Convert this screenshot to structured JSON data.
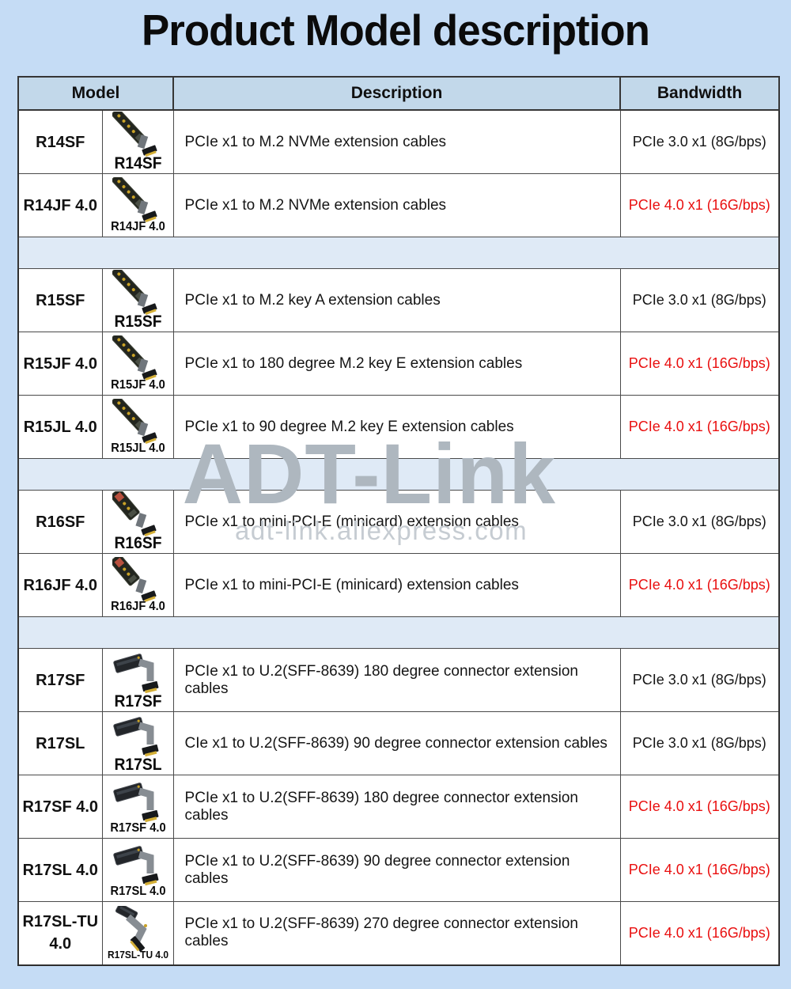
{
  "page": {
    "title": "Product Model description"
  },
  "watermark": {
    "brand": "ADT-Link",
    "url": "adt-link.aliexpress.com"
  },
  "colors": {
    "background": "#c5dcf5",
    "header_bg": "#c2d8ea",
    "spacer_bg": "#dfeaf6",
    "cell_bg": "#ffffff",
    "bandwidth_highlight": "#e90f0f",
    "border": "#363636"
  },
  "table": {
    "headers": [
      "Model",
      "Description",
      "Bandwidth"
    ],
    "rows": [
      {
        "model": "R14SF",
        "caption": "R14SF",
        "icon": "m2-stick-cable-icon",
        "description": "PCIe x1 to M.2 NVMe extension cables",
        "bandwidth": "PCIe 3.0 x1 (8G/bps)",
        "highlight": false
      },
      {
        "model": "R14JF 4.0",
        "caption": "R14JF 4.0",
        "icon": "m2-stick-cable-icon",
        "description": "PCIe x1 to M.2 NVMe extension cables",
        "bandwidth": "PCIe 4.0 x1 (16G/bps)",
        "highlight": true
      },
      {
        "type": "spacer"
      },
      {
        "model": "R15SF",
        "caption": "R15SF",
        "icon": "m2-stick-cable-icon",
        "description": "PCIe x1 to M.2 key A extension cables",
        "bandwidth": "PCIe 3.0 x1 (8G/bps)",
        "highlight": false
      },
      {
        "model": "R15JF 4.0",
        "caption": "R15JF 4.0",
        "icon": "m2-stick-cable-icon",
        "description": "PCIe x1 to 180 degree M.2 key E extension cables",
        "bandwidth": "PCIe 4.0 x1 (16G/bps)",
        "highlight": true
      },
      {
        "model": "R15JL 4.0",
        "caption": "R15JL 4.0",
        "icon": "m2-stick-cable-icon",
        "description": "PCIe x1 to 90 degree M.2 key E extension cables",
        "bandwidth": "PCIe 4.0 x1 (16G/bps)",
        "highlight": true
      },
      {
        "type": "spacer"
      },
      {
        "model": "R16SF",
        "caption": "R16SF",
        "icon": "minipcie-stick-cable-icon",
        "description": "PCIe x1 to mini-PCI-E (minicard) extension cables",
        "bandwidth": "PCIe 3.0 x1 (8G/bps)",
        "highlight": false
      },
      {
        "model": "R16JF 4.0",
        "caption": "R16JF 4.0",
        "icon": "minipcie-stick-cable-icon",
        "description": "PCIe x1 to mini-PCI-E (minicard) extension cables",
        "bandwidth": "PCIe 4.0 x1 (16G/bps)",
        "highlight": true
      },
      {
        "type": "spacer"
      },
      {
        "model": "R17SF",
        "caption": "R17SF",
        "icon": "u2-block-cable-icon",
        "description": "PCIe x1 to U.2(SFF-8639) 180 degree connector extension cables",
        "bandwidth": "PCIe 3.0 x1 (8G/bps)",
        "highlight": false
      },
      {
        "model": "R17SL",
        "caption": "R17SL",
        "icon": "u2-block-cable-icon",
        "description": "CIe x1 to U.2(SFF-8639) 90 degree connector extension cables",
        "bandwidth": "PCIe 3.0 x1 (8G/bps)",
        "highlight": false
      },
      {
        "model": "R17SF 4.0",
        "caption": "R17SF 4.0",
        "icon": "u2-block-cable-icon",
        "description": "PCIe x1 to U.2(SFF-8639) 180 degree connector extension cables",
        "bandwidth": "PCIe 4.0 x1 (16G/bps)",
        "highlight": true
      },
      {
        "model": "R17SL 4.0",
        "caption": "R17SL 4.0",
        "icon": "u2-block-cable-icon",
        "description": "PCIe x1 to U.2(SFF-8639) 90 degree connector extension cables",
        "bandwidth": "PCIe 4.0 x1 (16G/bps)",
        "highlight": true
      },
      {
        "model": "R17SL-TU 4.0",
        "caption": "R17SL-TU 4.0",
        "icon": "u2-wye-cable-icon",
        "description": "PCIe x1 to U.2(SFF-8639) 270 degree connector extension cables",
        "bandwidth": "PCIe 4.0 x1 (16G/bps)",
        "highlight": true
      }
    ]
  }
}
